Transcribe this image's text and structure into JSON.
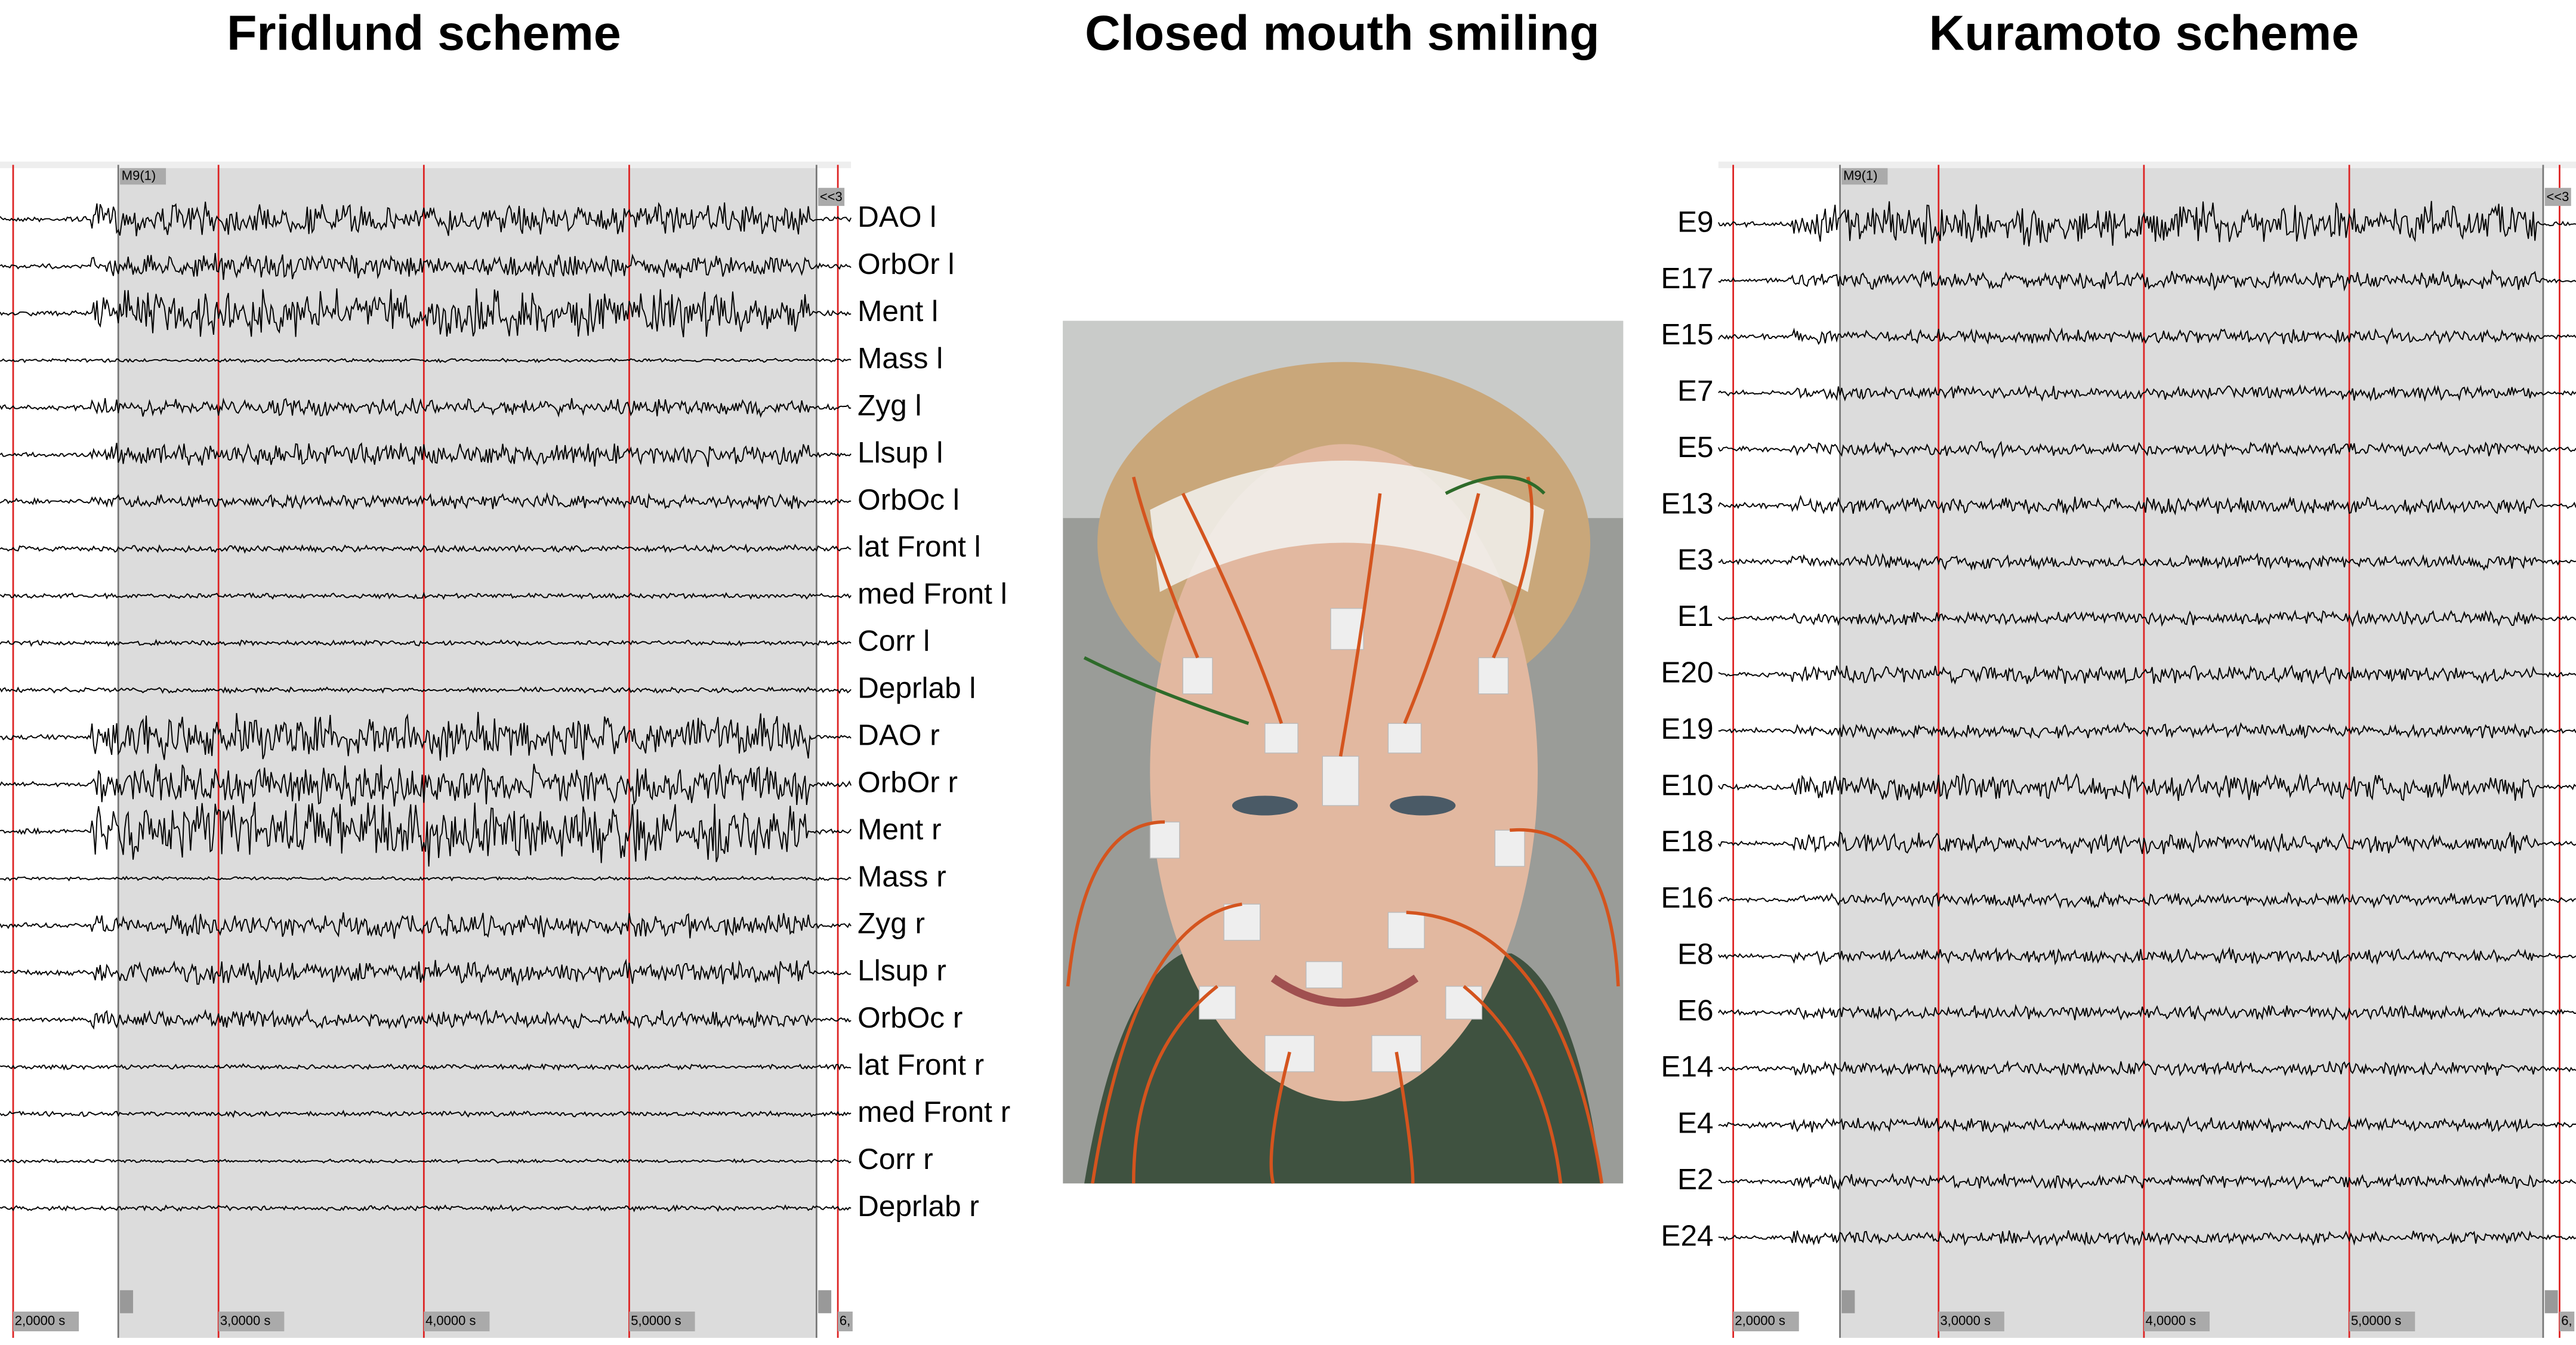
{
  "titles": {
    "left": "Fridlund scheme",
    "center": "Closed mouth smiling",
    "right": "Kuramoto scheme"
  },
  "left_panel": {
    "marker": "M9(1)",
    "nav": "<<3",
    "channels": [
      "DAO l",
      "OrbOr l",
      "Ment l",
      "Mass l",
      "Zyg l",
      "Llsup l",
      "OrbOc l",
      "lat Front l",
      "med Front l",
      "Corr l",
      "Deprlab l",
      "DAO r",
      "OrbOr r",
      "Ment r",
      "Mass r",
      "Zyg r",
      "Llsup r",
      "OrbOc r",
      "lat Front r",
      "med Front r",
      "Corr r",
      "Deprlab r"
    ],
    "time_labels": [
      "2,0000 s",
      "3,0000 s",
      "4,0000 s",
      "5,0000 s",
      "6,"
    ]
  },
  "right_panel": {
    "marker": "M9(1)",
    "nav": "<<3",
    "channels": [
      "E9",
      "E17",
      "E15",
      "E7",
      "E5",
      "E13",
      "E3",
      "E1",
      "E20",
      "E19",
      "E10",
      "E18",
      "E16",
      "E8",
      "E6",
      "E14",
      "E4",
      "E2",
      "E24"
    ],
    "time_labels": [
      "2,0000 s",
      "3,0000 s",
      "4,0000 s",
      "5,0000 s",
      "6,"
    ]
  }
}
